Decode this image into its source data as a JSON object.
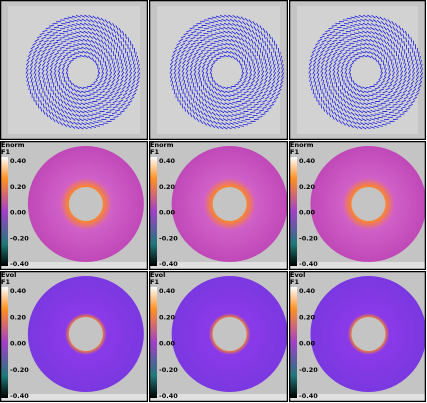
{
  "rows": [
    {
      "panels": [
        {
          "field": "Enorm",
          "component": "F1",
          "ticks": [
            "0.40",
            "0.20",
            "0.00",
            "-0.20",
            "-0.40"
          ]
        },
        {
          "field": "Enorm",
          "component": "F1",
          "ticks": [
            "0.40",
            "0.20",
            "0.00",
            "-0.20",
            "-0.40"
          ]
        },
        {
          "field": "Enorm",
          "component": "F1",
          "ticks": [
            "0.40",
            "0.20",
            "0.00",
            "-0.20",
            "-0.40"
          ]
        }
      ]
    },
    {
      "panels": [
        {
          "field": "Evol",
          "component": "F1",
          "ticks": [
            "0.40",
            "0.20",
            "0.00",
            "-0.20",
            "-0.40"
          ]
        },
        {
          "field": "Evol",
          "component": "F1",
          "ticks": [
            "0.40",
            "0.20",
            "0.00",
            "-0.20",
            "-0.40"
          ]
        },
        {
          "field": "Evol",
          "component": "F1",
          "ticks": [
            "0.40",
            "0.20",
            "0.00",
            "-0.20",
            "-0.40"
          ]
        }
      ]
    }
  ]
}
